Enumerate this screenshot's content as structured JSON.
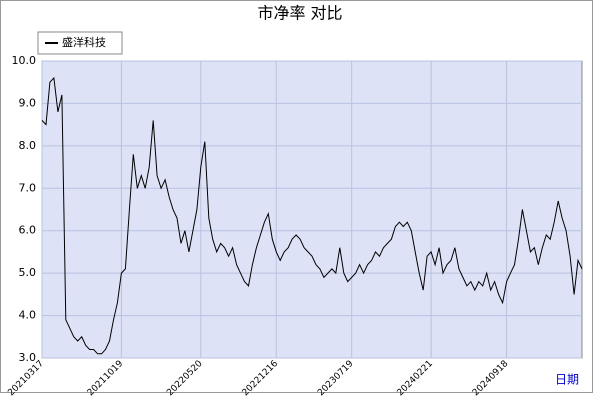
{
  "chart_data": {
    "type": "line",
    "title": "市净率  对比",
    "x_label": "日期",
    "legend": "upper left",
    "grid": true,
    "series": [
      {
        "name": "盛洋科技",
        "color": "#000000",
        "values": [
          8.6,
          8.5,
          9.5,
          9.6,
          8.8,
          9.2,
          3.9,
          3.7,
          3.5,
          3.4,
          3.5,
          3.3,
          3.2,
          3.2,
          3.1,
          3.1,
          3.2,
          3.4,
          3.9,
          4.3,
          5.0,
          5.1,
          6.5,
          7.8,
          7.0,
          7.3,
          7.0,
          7.5,
          8.6,
          7.3,
          7.0,
          7.2,
          6.8,
          6.5,
          6.3,
          5.7,
          6.0,
          5.5,
          6.0,
          6.5,
          7.5,
          8.1,
          6.3,
          5.8,
          5.5,
          5.7,
          5.6,
          5.4,
          5.6,
          5.2,
          5.0,
          4.8,
          4.7,
          5.2,
          5.6,
          5.9,
          6.2,
          6.4,
          5.8,
          5.5,
          5.3,
          5.5,
          5.6,
          5.8,
          5.9,
          5.8,
          5.6,
          5.5,
          5.4,
          5.2,
          5.1,
          4.9,
          5.0,
          5.1,
          5.0,
          5.6,
          5.0,
          4.8,
          4.9,
          5.0,
          5.2,
          5.0,
          5.2,
          5.3,
          5.5,
          5.4,
          5.6,
          5.7,
          5.8,
          6.1,
          6.2,
          6.1,
          6.2,
          6.0,
          5.5,
          5.0,
          4.6,
          5.4,
          5.5,
          5.2,
          5.6,
          5.0,
          5.2,
          5.3,
          5.6,
          5.1,
          4.9,
          4.7,
          4.8,
          4.6,
          4.8,
          4.7,
          5.0,
          4.6,
          4.8,
          4.5,
          4.3,
          4.8,
          5.0,
          5.2,
          5.8,
          6.5,
          6.0,
          5.5,
          5.6,
          5.2,
          5.6,
          5.9,
          5.8,
          6.2,
          6.7,
          6.3,
          6.0,
          5.4,
          4.5,
          5.3,
          5.1
        ]
      }
    ],
    "xlim": [
      0,
      136
    ],
    "xticks": [
      {
        "value": 0,
        "label": "20210317"
      },
      {
        "value": 20,
        "label": "20211019"
      },
      {
        "value": 40,
        "label": "20220520"
      },
      {
        "value": 59,
        "label": "20221216"
      },
      {
        "value": 78,
        "label": "20230719"
      },
      {
        "value": 98,
        "label": "20240221"
      },
      {
        "value": 117,
        "label": "20240918"
      }
    ],
    "ylim": [
      3,
      10
    ],
    "yticks": [
      {
        "value": 3,
        "label": "3.0"
      },
      {
        "value": 4,
        "label": "4.0"
      },
      {
        "value": 5,
        "label": "5.0"
      },
      {
        "value": 6,
        "label": "6.0"
      },
      {
        "value": 7,
        "label": "7.0"
      },
      {
        "value": 8,
        "label": "8.0"
      },
      {
        "value": 9,
        "label": "9.0"
      },
      {
        "value": 10,
        "label": "10.0"
      }
    ]
  }
}
